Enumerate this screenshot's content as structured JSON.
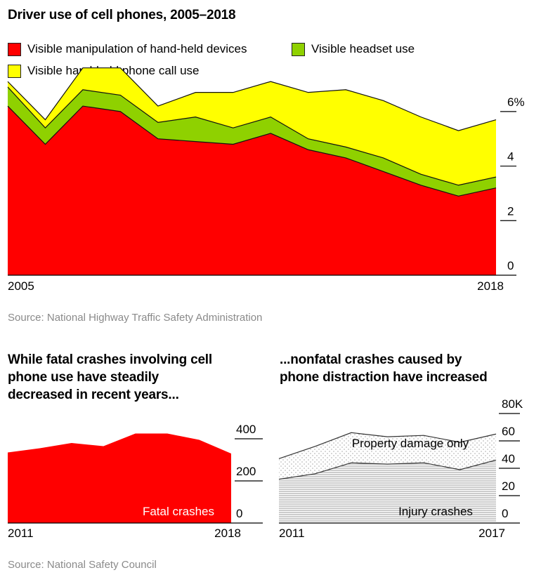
{
  "charts": {
    "main": {
      "title": "Driver use of cell phones, 2005–2018",
      "legend_colors": {
        "Visible manipulation of hand-held devices": "#ff0000",
        "Visible headset use": "#8fd100",
        "Visible hand-held phone call use": "#ffff00"
      },
      "source": "Source: National Highway Traffic Safety Administration",
      "x_labels": [
        "2005",
        "2018"
      ]
    },
    "fatal": {
      "title_lines": [
        "While fatal crashes involving cell",
        "phone use have steadily",
        "decreased in recent years..."
      ],
      "area_label": "Fatal crashes",
      "x_labels": [
        "2011",
        "2018"
      ]
    },
    "nonfatal": {
      "title_lines": [
        "...nonfatal crashes caused by",
        "phone distraction have increased"
      ],
      "area_labels": [
        "Property damage only",
        "Injury crashes"
      ],
      "x_labels": [
        "2011",
        "2017"
      ]
    },
    "bottom_source": "Source: National Safety Council"
  },
  "chart_data": [
    {
      "type": "area",
      "stacked": true,
      "title": "Driver use of cell phones, 2005–2018",
      "x": [
        2005,
        2006,
        2007,
        2008,
        2009,
        2010,
        2011,
        2012,
        2013,
        2014,
        2015,
        2016,
        2017,
        2018
      ],
      "series": [
        {
          "name": "Visible manipulation of hand-held devices",
          "values": [
            6.2,
            4.8,
            6.2,
            6.0,
            5.0,
            4.9,
            4.8,
            5.2,
            4.6,
            4.3,
            3.8,
            3.3,
            2.9,
            3.2
          ]
        },
        {
          "name": "Visible headset use",
          "values": [
            0.7,
            0.6,
            0.6,
            0.6,
            0.6,
            0.9,
            0.6,
            0.6,
            0.4,
            0.4,
            0.5,
            0.4,
            0.4,
            0.4
          ]
        },
        {
          "name": "Visible hand-held phone call use",
          "values": [
            0.2,
            0.3,
            0.8,
            1.0,
            0.6,
            0.9,
            1.3,
            1.3,
            1.7,
            2.1,
            2.1,
            2.1,
            2.0,
            2.1
          ]
        }
      ],
      "y_ticks": [
        0,
        2,
        4,
        6
      ],
      "y_tick_labels": [
        "0",
        "2",
        "4",
        "6%"
      ],
      "ylim": [
        0,
        7
      ],
      "xlim": [
        2005,
        2018
      ],
      "legend_position": "top-left",
      "grid": false
    },
    {
      "type": "area",
      "title": "While fatal crashes involving cell phone use have steadily decreased in recent years...",
      "x": [
        2011,
        2012,
        2013,
        2014,
        2015,
        2016,
        2017,
        2018
      ],
      "series": [
        {
          "name": "Fatal crashes",
          "values": [
            335,
            355,
            380,
            365,
            425,
            425,
            395,
            330
          ]
        }
      ],
      "y_ticks": [
        0,
        200,
        400
      ],
      "y_tick_labels": [
        "0",
        "200",
        "400"
      ],
      "ylim": [
        0,
        450
      ],
      "xlim": [
        2011,
        2018
      ],
      "grid": false
    },
    {
      "type": "area",
      "stacked": true,
      "title": "...nonfatal crashes caused by phone distraction have increased",
      "x": [
        2011,
        2012,
        2013,
        2014,
        2015,
        2016,
        2017
      ],
      "series": [
        {
          "name": "Injury crashes",
          "values": [
            32,
            36,
            44,
            43,
            44,
            39,
            46
          ]
        },
        {
          "name": "Property damage only",
          "values": [
            15,
            20,
            22,
            20,
            20,
            20,
            19
          ]
        }
      ],
      "y_ticks": [
        0,
        20,
        40,
        60,
        80
      ],
      "y_tick_labels": [
        "0",
        "20",
        "40",
        "60",
        "80K"
      ],
      "ylim": [
        0,
        80
      ],
      "xlim": [
        2011,
        2017
      ],
      "grid": false
    }
  ]
}
